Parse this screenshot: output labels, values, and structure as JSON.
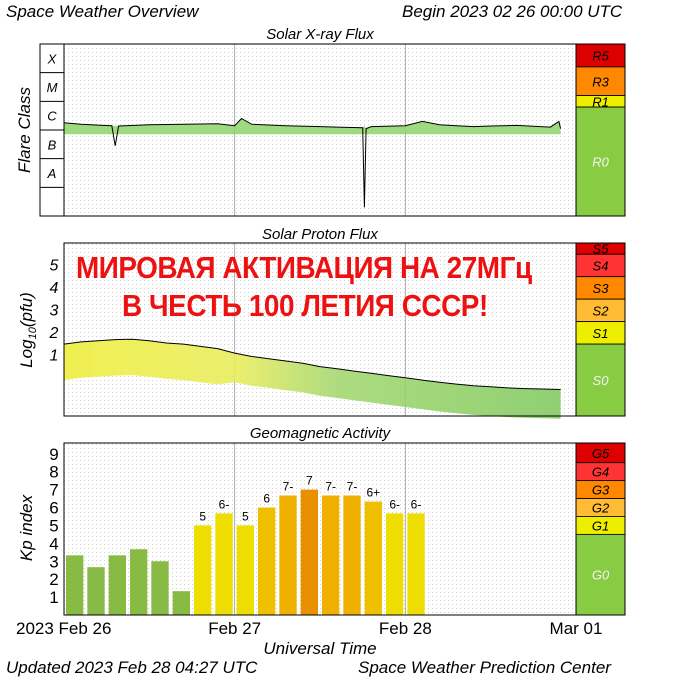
{
  "header": {
    "left": "Space Weather Overview",
    "right": "Begin 2023 02 26 00:00 UTC"
  },
  "footer": {
    "updated": "Updated 2023 Feb 28 04:27 UTC",
    "center": "Space Weather Prediction Center"
  },
  "overlay": {
    "line1": "МИРОВАЯ АКТИВАЦИЯ НА 27МГц",
    "line2": "В ЧЕСТЬ 100 ЛЕТИЯ СССР!",
    "color": "#ee1111"
  },
  "time_axis": {
    "title": "Universal Time",
    "ticks": [
      "2023 Feb 26",
      "Feb 27",
      "Feb 28",
      "Mar 01"
    ]
  },
  "chart_data": [
    {
      "type": "line",
      "title": "Solar X-ray Flux",
      "ylabel": "Flare Class",
      "y_scale": "log",
      "class_labels": [
        "X",
        "M",
        "C",
        "B",
        "A"
      ],
      "x_unit": "days since 2023-02-26 00:00 UTC",
      "xlim": [
        0,
        3
      ],
      "ylim_log10": [
        -9,
        -3
      ],
      "series": [
        {
          "x": [
            0.0,
            0.1,
            0.2,
            0.28,
            0.3,
            0.32,
            0.5,
            0.7,
            0.9,
            1.0,
            1.04,
            1.1,
            1.3,
            1.5,
            1.6,
            1.75,
            1.76,
            1.77,
            1.8,
            2.0,
            2.1,
            2.2,
            2.3,
            2.4,
            2.5,
            2.65,
            2.85,
            2.9,
            2.91
          ],
          "y_log10": [
            -5.75,
            -5.8,
            -5.83,
            -5.85,
            -6.55,
            -5.86,
            -5.82,
            -5.8,
            -5.78,
            -5.85,
            -5.6,
            -5.8,
            -5.85,
            -5.88,
            -5.9,
            -5.92,
            -8.7,
            -5.95,
            -5.88,
            -5.85,
            -5.7,
            -5.82,
            -5.85,
            -5.88,
            -5.86,
            -5.84,
            -5.9,
            -5.7,
            -5.95
          ]
        }
      ],
      "scale_labels": [
        "R5",
        "R3",
        "R1",
        "R0"
      ],
      "scale_colors": [
        "#dd0000",
        "#ff8800",
        "#eeee00",
        "#88cc44"
      ]
    },
    {
      "type": "line",
      "title": "Solar Proton Flux",
      "ylabel": "Log10(pfu)",
      "ylabel_prefix": "Log",
      "ylabel_sub": "10",
      "ylabel_suffix": "(pfu)",
      "y_ticks": [
        1,
        2,
        3,
        4,
        5
      ],
      "xlim": [
        0,
        3
      ],
      "ylim": [
        -1.7,
        6
      ],
      "series": [
        {
          "x": [
            0.0,
            0.1,
            0.2,
            0.3,
            0.4,
            0.5,
            0.6,
            0.7,
            0.8,
            0.9,
            1.0,
            1.1,
            1.2,
            1.3,
            1.4,
            1.5,
            1.6,
            1.7,
            1.8,
            1.9,
            2.0,
            2.1,
            2.2,
            2.3,
            2.4,
            2.5,
            2.6,
            2.7,
            2.8,
            2.91
          ],
          "y": [
            1.5,
            1.6,
            1.65,
            1.7,
            1.72,
            1.65,
            1.55,
            1.5,
            1.4,
            1.3,
            1.1,
            0.95,
            0.85,
            0.75,
            0.65,
            0.5,
            0.4,
            0.3,
            0.2,
            0.1,
            0.0,
            -0.1,
            -0.2,
            -0.28,
            -0.35,
            -0.4,
            -0.45,
            -0.48,
            -0.5,
            -0.52
          ]
        }
      ],
      "scale_labels": [
        "S5",
        "S4",
        "S3",
        "S2",
        "S1",
        "S0"
      ],
      "scale_colors": [
        "#dd0000",
        "#ff3333",
        "#ff8800",
        "#ffbb33",
        "#eeee00",
        "#88cc44"
      ]
    },
    {
      "type": "bar",
      "title": "Geomagnetic Activity",
      "ylabel": "Kp index",
      "y_ticks": [
        1,
        2,
        3,
        4,
        5,
        6,
        7,
        8,
        9
      ],
      "ylim": [
        0,
        9.6
      ],
      "bar_width_days": 0.125,
      "values": [
        3.33,
        2.67,
        3.33,
        3.67,
        3.0,
        1.33,
        5.0,
        5.67,
        5.0,
        6.0,
        6.67,
        7.0,
        6.67,
        6.67,
        6.33,
        5.67,
        5.67
      ],
      "value_labels": [
        "",
        "",
        "",
        "",
        "",
        "",
        "5",
        "6-",
        "5",
        "6",
        "7-",
        "7",
        "7-",
        "7-",
        "6+",
        "6-",
        "6-"
      ],
      "bar_colors": [
        "#88bb44",
        "#88bb44",
        "#88bb44",
        "#88bb44",
        "#88bb44",
        "#88bb44",
        "#eedd00",
        "#eedd00",
        "#eedd00",
        "#f0c000",
        "#f0b000",
        "#e89000",
        "#f0b000",
        "#f0b000",
        "#f0c000",
        "#eedd00",
        "#eedd00"
      ],
      "scale_labels": [
        "G5",
        "G4",
        "G3",
        "G2",
        "G1",
        "G0"
      ],
      "scale_colors": [
        "#dd0000",
        "#ff3333",
        "#ff8800",
        "#ffbb33",
        "#eeee00",
        "#88cc44"
      ]
    }
  ]
}
